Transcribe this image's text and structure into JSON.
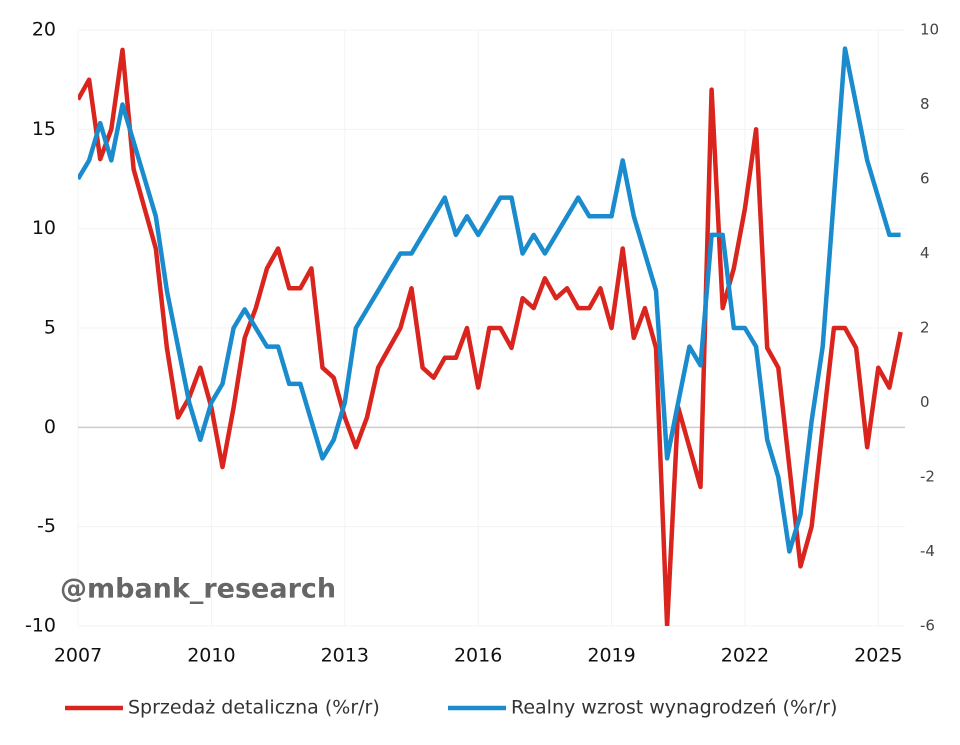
{
  "chart_data": {
    "type": "line",
    "annotation": "@mbank_research",
    "x": [
      2007,
      2007.25,
      2007.5,
      2007.75,
      2008,
      2008.25,
      2008.5,
      2008.75,
      2009,
      2009.25,
      2009.5,
      2009.75,
      2010,
      2010.25,
      2010.5,
      2010.75,
      2011,
      2011.25,
      2011.5,
      2011.75,
      2012,
      2012.25,
      2012.5,
      2012.75,
      2013,
      2013.25,
      2013.5,
      2013.75,
      2014,
      2014.25,
      2014.5,
      2014.75,
      2015,
      2015.25,
      2015.5,
      2015.75,
      2016,
      2016.25,
      2016.5,
      2016.75,
      2017,
      2017.25,
      2017.5,
      2017.75,
      2018,
      2018.25,
      2018.5,
      2018.75,
      2019,
      2019.25,
      2019.5,
      2019.75,
      2020,
      2020.25,
      2020.5,
      2020.75,
      2021,
      2021.25,
      2021.5,
      2021.75,
      2022,
      2022.25,
      2022.5,
      2022.75,
      2023,
      2023.25,
      2023.5,
      2023.75,
      2024,
      2024.25,
      2024.5,
      2024.75,
      2025,
      2025.25,
      2025.5
    ],
    "series": [
      {
        "name": "Sprzedaż detaliczna (%r/r)",
        "color": "#d9251d",
        "axis": "y",
        "values": [
          16.5,
          17.5,
          13.5,
          15,
          19,
          13,
          11,
          9,
          4,
          0.5,
          1.5,
          3,
          1,
          -2,
          1,
          4.5,
          6,
          8,
          9,
          7,
          7,
          8,
          3,
          2.5,
          0.5,
          -1,
          0.5,
          3,
          4,
          5,
          7,
          3,
          2.5,
          3.5,
          3.5,
          5,
          2,
          5,
          5,
          4,
          6.5,
          6,
          7.5,
          6.5,
          7,
          6,
          6,
          7,
          5,
          9,
          4.5,
          6,
          4,
          -10,
          1,
          -1,
          -3,
          17,
          6,
          8,
          11,
          15,
          4,
          3,
          -2,
          -7,
          -5,
          0,
          5,
          5,
          4,
          -1,
          3,
          2,
          4.8
        ]
      },
      {
        "name": "Realny wzrost wynagrodzeń (%r/r)",
        "color": "#1a8bcd",
        "axis": "y2",
        "values": [
          6,
          6.5,
          7.5,
          6.5,
          8,
          7,
          6,
          5,
          3,
          1.5,
          0,
          -1,
          0,
          0.5,
          2,
          2.5,
          2,
          1.5,
          1.5,
          0.5,
          0.5,
          -0.5,
          -1.5,
          -1,
          0,
          2,
          2.5,
          3,
          3.5,
          4,
          4,
          4.5,
          5,
          5.5,
          4.5,
          5,
          4.5,
          5,
          5.5,
          5.5,
          4,
          4.5,
          4,
          4.5,
          5,
          5.5,
          5,
          5,
          5,
          6.5,
          5,
          4,
          3,
          -1.5,
          0,
          1.5,
          1,
          4.5,
          4.5,
          2,
          2,
          1.5,
          -1,
          -2,
          -4,
          -3,
          -0.5,
          1.5,
          5.5,
          9.5,
          8,
          6.5,
          5.5,
          4.5,
          4.5
        ]
      }
    ],
    "xlim": [
      2007,
      2025.6
    ],
    "xticks": [
      2007,
      2010,
      2013,
      2016,
      2019,
      2022,
      2025
    ],
    "ylim": [
      -10,
      20
    ],
    "yticks": [
      -10,
      -5,
      0,
      5,
      10,
      15,
      20
    ],
    "y2lim": [
      -6,
      10
    ],
    "y2ticks": [
      -6,
      -4,
      -2,
      0,
      2,
      4,
      6,
      8,
      10
    ],
    "grid": true,
    "legend": "bottom"
  }
}
